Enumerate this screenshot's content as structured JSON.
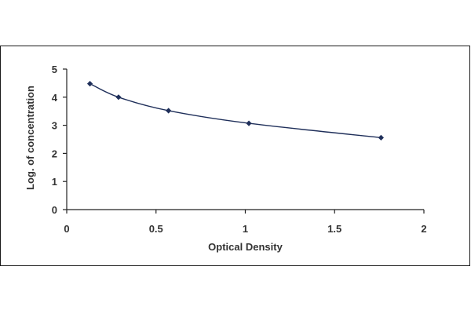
{
  "chart_data": {
    "type": "scatter",
    "title": "",
    "xlabel": "Optical Density",
    "ylabel": "Log. of concentration",
    "xlim": [
      0,
      2
    ],
    "ylim": [
      0,
      5
    ],
    "x_ticks": [
      "0",
      "0.5",
      "1",
      "1.5",
      "2"
    ],
    "y_ticks": [
      "0",
      "1",
      "2",
      "3",
      "4",
      "5"
    ],
    "grid": false,
    "legend": "none",
    "series": [
      {
        "marker": "diamond",
        "fit": "smooth-curve",
        "color": "#1f2f5a",
        "x": [
          0.13,
          0.29,
          0.57,
          1.02,
          1.76
        ],
        "y": [
          4.48,
          4.0,
          3.52,
          3.07,
          2.56
        ]
      }
    ]
  }
}
